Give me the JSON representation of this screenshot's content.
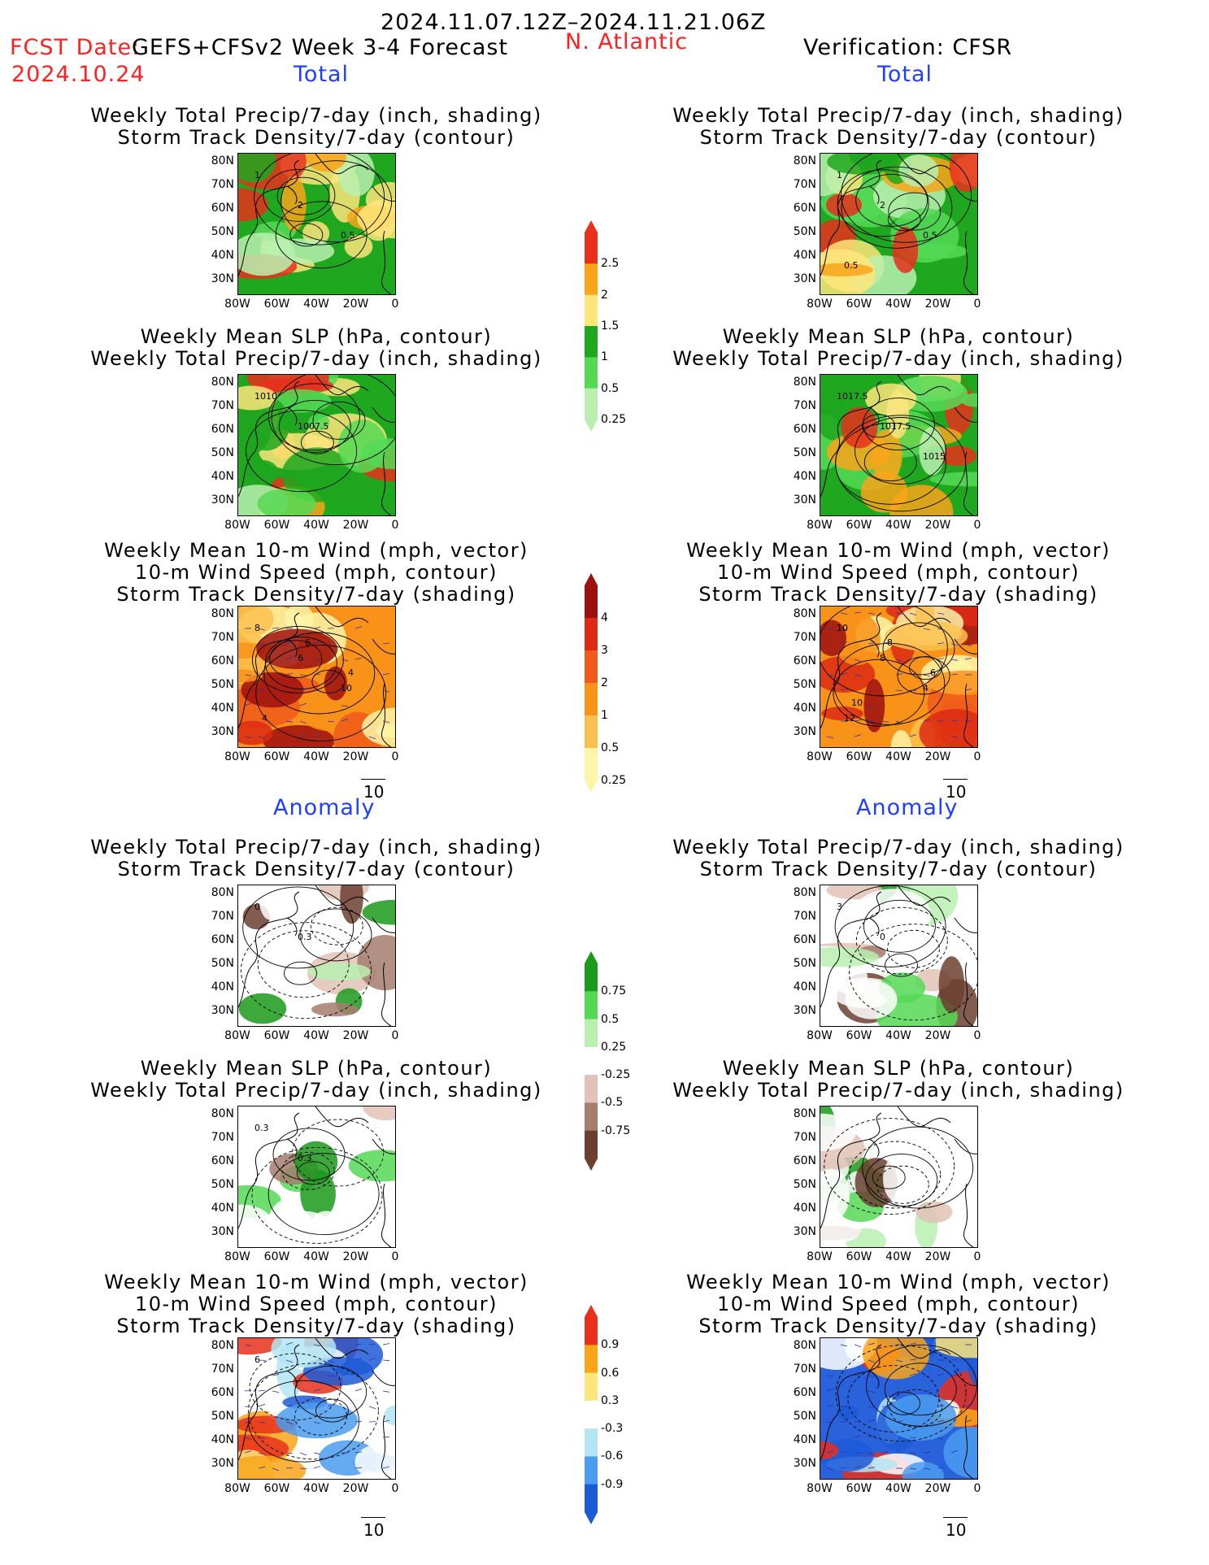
{
  "header": {
    "period": "2024.11.07.12Z–2024.11.21.06Z",
    "fcst_label": "FCST Date:",
    "model": "GEFS+CFSv2 Week 3-4 Forecast",
    "fcst_date": "2024.10.24",
    "region": "N. Atlantic",
    "verification": "Verification: CFSR"
  },
  "sections": {
    "total": "Total",
    "anomaly": "Anomaly"
  },
  "panel_titles": {
    "precip_storm": [
      "Weekly Total Precip/7-day (inch, shading)",
      "Storm Track Density/7-day (contour)"
    ],
    "slp_precip": [
      "Weekly Mean SLP (hPa, contour)",
      "Weekly Total Precip/7-day (inch, shading)"
    ],
    "wind_storm": [
      "Weekly Mean 10-m Wind (mph, vector)",
      "10-m Wind Speed (mph, contour)",
      "Storm Track Density/7-day (shading)"
    ]
  },
  "axes": {
    "lat": [
      "80N",
      "70N",
      "60N",
      "50N",
      "40N",
      "30N"
    ],
    "lon": [
      "80W",
      "60W",
      "40W",
      "20W",
      "0"
    ]
  },
  "vector_ref": "10",
  "colorbars": {
    "precip_total": {
      "labels": [
        "2.5",
        "2",
        "1.5",
        "1",
        "0.5",
        "0.25"
      ],
      "colors": [
        "#e8301c",
        "#f9a51a",
        "#fde57a",
        "#1fa71f",
        "#55d955",
        "#b9f0b0"
      ]
    },
    "storm_total": {
      "labels": [
        "4",
        "3",
        "2",
        "1",
        "0.5",
        "0.25"
      ],
      "colors": [
        "#9e0f0f",
        "#dc2a14",
        "#f15a1b",
        "#f99219",
        "#fbc14e",
        "#fef5a8"
      ]
    },
    "precip_anom": {
      "labels": [
        "0.75",
        "0.5",
        "0.25",
        "-0.25",
        "-0.5",
        "-0.75"
      ],
      "colors": [
        "#1b9a1b",
        "#55d955",
        "#b9f0b0",
        "#ffffff",
        "#e2c2b6",
        "#a57e6e",
        "#6b4030"
      ]
    },
    "storm_anom": {
      "labels": [
        "0.9",
        "0.6",
        "0.3",
        "-0.3",
        "-0.6",
        "-0.9"
      ],
      "colors": [
        "#e8301c",
        "#f9a51a",
        "#fde57a",
        "#ffffff",
        "#b3e5f5",
        "#4a9cf0",
        "#1c5ad8"
      ]
    }
  },
  "contour_labels": {
    "p1": [
      "1",
      "2",
      "0.5"
    ],
    "p2": [
      "1010",
      "1007.5"
    ],
    "p3": [
      "8",
      "6",
      "10",
      "4",
      "6",
      "4"
    ],
    "p4": [
      "1",
      "2",
      "0.5",
      "0.5"
    ],
    "p5": [
      "1017.5",
      "1017.5",
      "1015"
    ],
    "p6": [
      "10",
      "8",
      "4",
      "12",
      "8",
      "6",
      "10"
    ],
    "p7": [
      "0",
      "0.3"
    ],
    "p8": [
      "0.3",
      "0.3"
    ],
    "p9": [
      "6"
    ],
    "p10": [
      "3",
      "0"
    ]
  }
}
